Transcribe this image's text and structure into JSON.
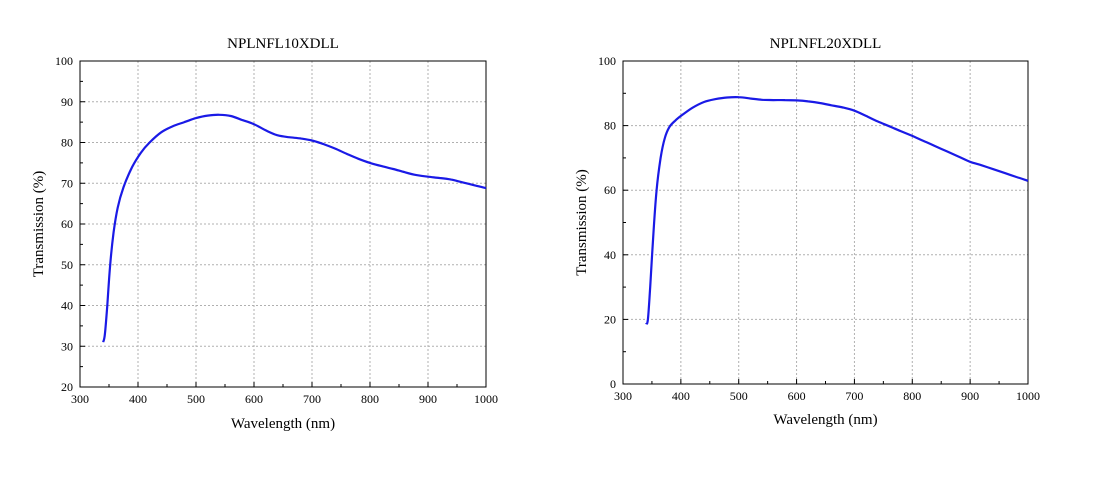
{
  "chart_data": [
    {
      "type": "line",
      "title": "NPLNFL10XDLL",
      "xlabel": "Wavelength (nm)",
      "ylabel": "Transmission (%)",
      "xlim": [
        300,
        1000
      ],
      "ylim": [
        20,
        100
      ],
      "xticks": [
        300,
        400,
        500,
        600,
        700,
        800,
        900,
        1000
      ],
      "yticks": [
        20,
        30,
        40,
        50,
        60,
        70,
        80,
        90,
        100
      ],
      "grid": true,
      "line_color": "#1a1ae6",
      "x": [
        340,
        343,
        347,
        352,
        358,
        365,
        375,
        390,
        405,
        420,
        440,
        460,
        480,
        500,
        520,
        540,
        560,
        580,
        600,
        620,
        640,
        660,
        680,
        700,
        720,
        740,
        760,
        780,
        800,
        820,
        840,
        860,
        880,
        900,
        920,
        940,
        960,
        980,
        1000
      ],
      "y": [
        31,
        33,
        40,
        50,
        58,
        64,
        69,
        74,
        77.5,
        80,
        82.5,
        84,
        85,
        86,
        86.6,
        86.8,
        86.5,
        85.5,
        84.5,
        83,
        81.8,
        81.3,
        81,
        80.5,
        79.6,
        78.5,
        77.2,
        76,
        75,
        74.2,
        73.5,
        72.7,
        72,
        71.6,
        71.3,
        70.9,
        70.2,
        69.5,
        68.8
      ]
    },
    {
      "type": "line",
      "title": "NPLNFL20XDLL",
      "xlabel": "Wavelength (nm)",
      "ylabel": "Transmission (%)",
      "xlim": [
        300,
        1000
      ],
      "ylim": [
        0,
        100
      ],
      "xticks": [
        300,
        400,
        500,
        600,
        700,
        800,
        900,
        1000
      ],
      "yticks": [
        0,
        20,
        40,
        60,
        80,
        100
      ],
      "grid": true,
      "line_color": "#1a1ae6",
      "x": [
        340,
        343,
        347,
        352,
        358,
        365,
        372,
        380,
        390,
        400,
        420,
        440,
        460,
        480,
        500,
        520,
        540,
        560,
        580,
        600,
        620,
        640,
        660,
        680,
        700,
        720,
        740,
        760,
        780,
        800,
        820,
        840,
        860,
        880,
        900,
        920,
        940,
        960,
        980,
        1000
      ],
      "y": [
        18.5,
        20,
        30,
        45,
        60,
        70,
        76,
        79.5,
        81.5,
        83,
        85.5,
        87.3,
        88.2,
        88.7,
        88.8,
        88.4,
        88,
        87.9,
        87.9,
        87.8,
        87.5,
        87,
        86.3,
        85.6,
        84.6,
        83,
        81.3,
        79.8,
        78.3,
        76.8,
        75.2,
        73.6,
        72,
        70.4,
        68.8,
        67.7,
        66.5,
        65.3,
        64.1,
        62.9
      ]
    }
  ]
}
